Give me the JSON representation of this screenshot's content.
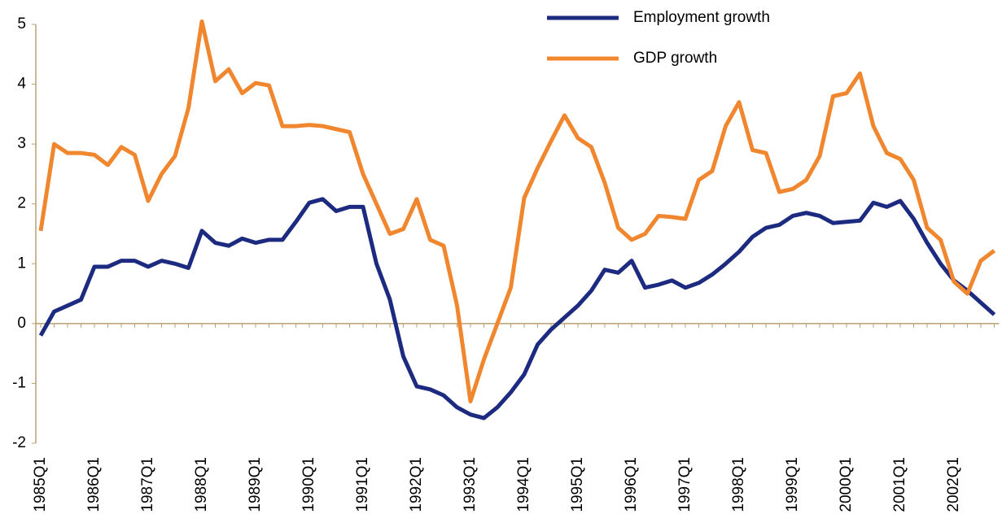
{
  "chart_data": {
    "type": "line",
    "categories": [
      "1985Q1",
      null,
      null,
      null,
      "1986Q1",
      null,
      null,
      null,
      "1987Q1",
      null,
      null,
      null,
      "1988Q1",
      null,
      null,
      null,
      "1989Q1",
      null,
      null,
      null,
      "1990Q1",
      null,
      null,
      null,
      "1991Q1",
      null,
      null,
      null,
      "1992Q1",
      null,
      null,
      null,
      "1993Q1",
      null,
      null,
      null,
      "1994Q1",
      null,
      null,
      null,
      "1995Q1",
      null,
      null,
      null,
      "1996Q1",
      null,
      null,
      null,
      "1997Q1",
      null,
      null,
      null,
      "1998Q1",
      null,
      null,
      null,
      "1999Q1",
      null,
      null,
      null,
      "2000Q1",
      null,
      null,
      null,
      "2001Q1",
      null,
      null,
      null,
      "2002Q1",
      null,
      null,
      null
    ],
    "series": [
      {
        "name": "Employment growth",
        "color": "#1c2a80",
        "values": [
          -0.2,
          0.2,
          0.3,
          0.4,
          0.95,
          0.95,
          1.05,
          1.05,
          0.95,
          1.05,
          1.0,
          0.93,
          1.55,
          1.35,
          1.3,
          1.42,
          1.35,
          1.4,
          1.4,
          1.7,
          2.02,
          2.08,
          1.88,
          1.95,
          1.95,
          1.0,
          0.4,
          -0.55,
          -1.05,
          -1.1,
          -1.2,
          -1.4,
          -1.52,
          -1.58,
          -1.4,
          -1.15,
          -0.85,
          -0.35,
          -0.1,
          0.1,
          0.3,
          0.55,
          0.9,
          0.85,
          1.05,
          0.6,
          0.65,
          0.72,
          0.6,
          0.68,
          0.82,
          1.0,
          1.2,
          1.45,
          1.6,
          1.65,
          1.8,
          1.85,
          1.8,
          1.68,
          1.7,
          1.72,
          2.02,
          1.95,
          2.05,
          1.75,
          1.35,
          1.0,
          0.72,
          0.55,
          0.35,
          0.15
        ]
      },
      {
        "name": "GDP growth",
        "color": "#f0862e",
        "values": [
          1.55,
          3.0,
          2.85,
          2.85,
          2.82,
          2.65,
          2.95,
          2.82,
          2.05,
          2.5,
          2.8,
          3.6,
          5.05,
          4.05,
          4.25,
          3.85,
          4.02,
          3.98,
          3.3,
          3.3,
          3.32,
          3.3,
          3.25,
          3.2,
          2.5,
          2.0,
          1.5,
          1.58,
          2.08,
          1.4,
          1.3,
          0.3,
          -1.3,
          -0.6,
          0.0,
          0.6,
          2.1,
          2.6,
          3.05,
          3.48,
          3.1,
          2.95,
          2.35,
          1.6,
          1.4,
          1.5,
          1.8,
          1.78,
          1.75,
          2.4,
          2.55,
          3.3,
          3.7,
          2.9,
          2.85,
          2.2,
          2.25,
          2.4,
          2.8,
          3.8,
          3.85,
          4.18,
          3.3,
          2.85,
          2.75,
          2.4,
          1.6,
          1.4,
          0.7,
          0.5,
          1.05,
          1.22
        ]
      }
    ],
    "ylim": [
      -2,
      5
    ],
    "yticks": [
      -2,
      -1,
      0,
      1,
      2,
      3,
      4,
      5
    ],
    "grid": false
  }
}
